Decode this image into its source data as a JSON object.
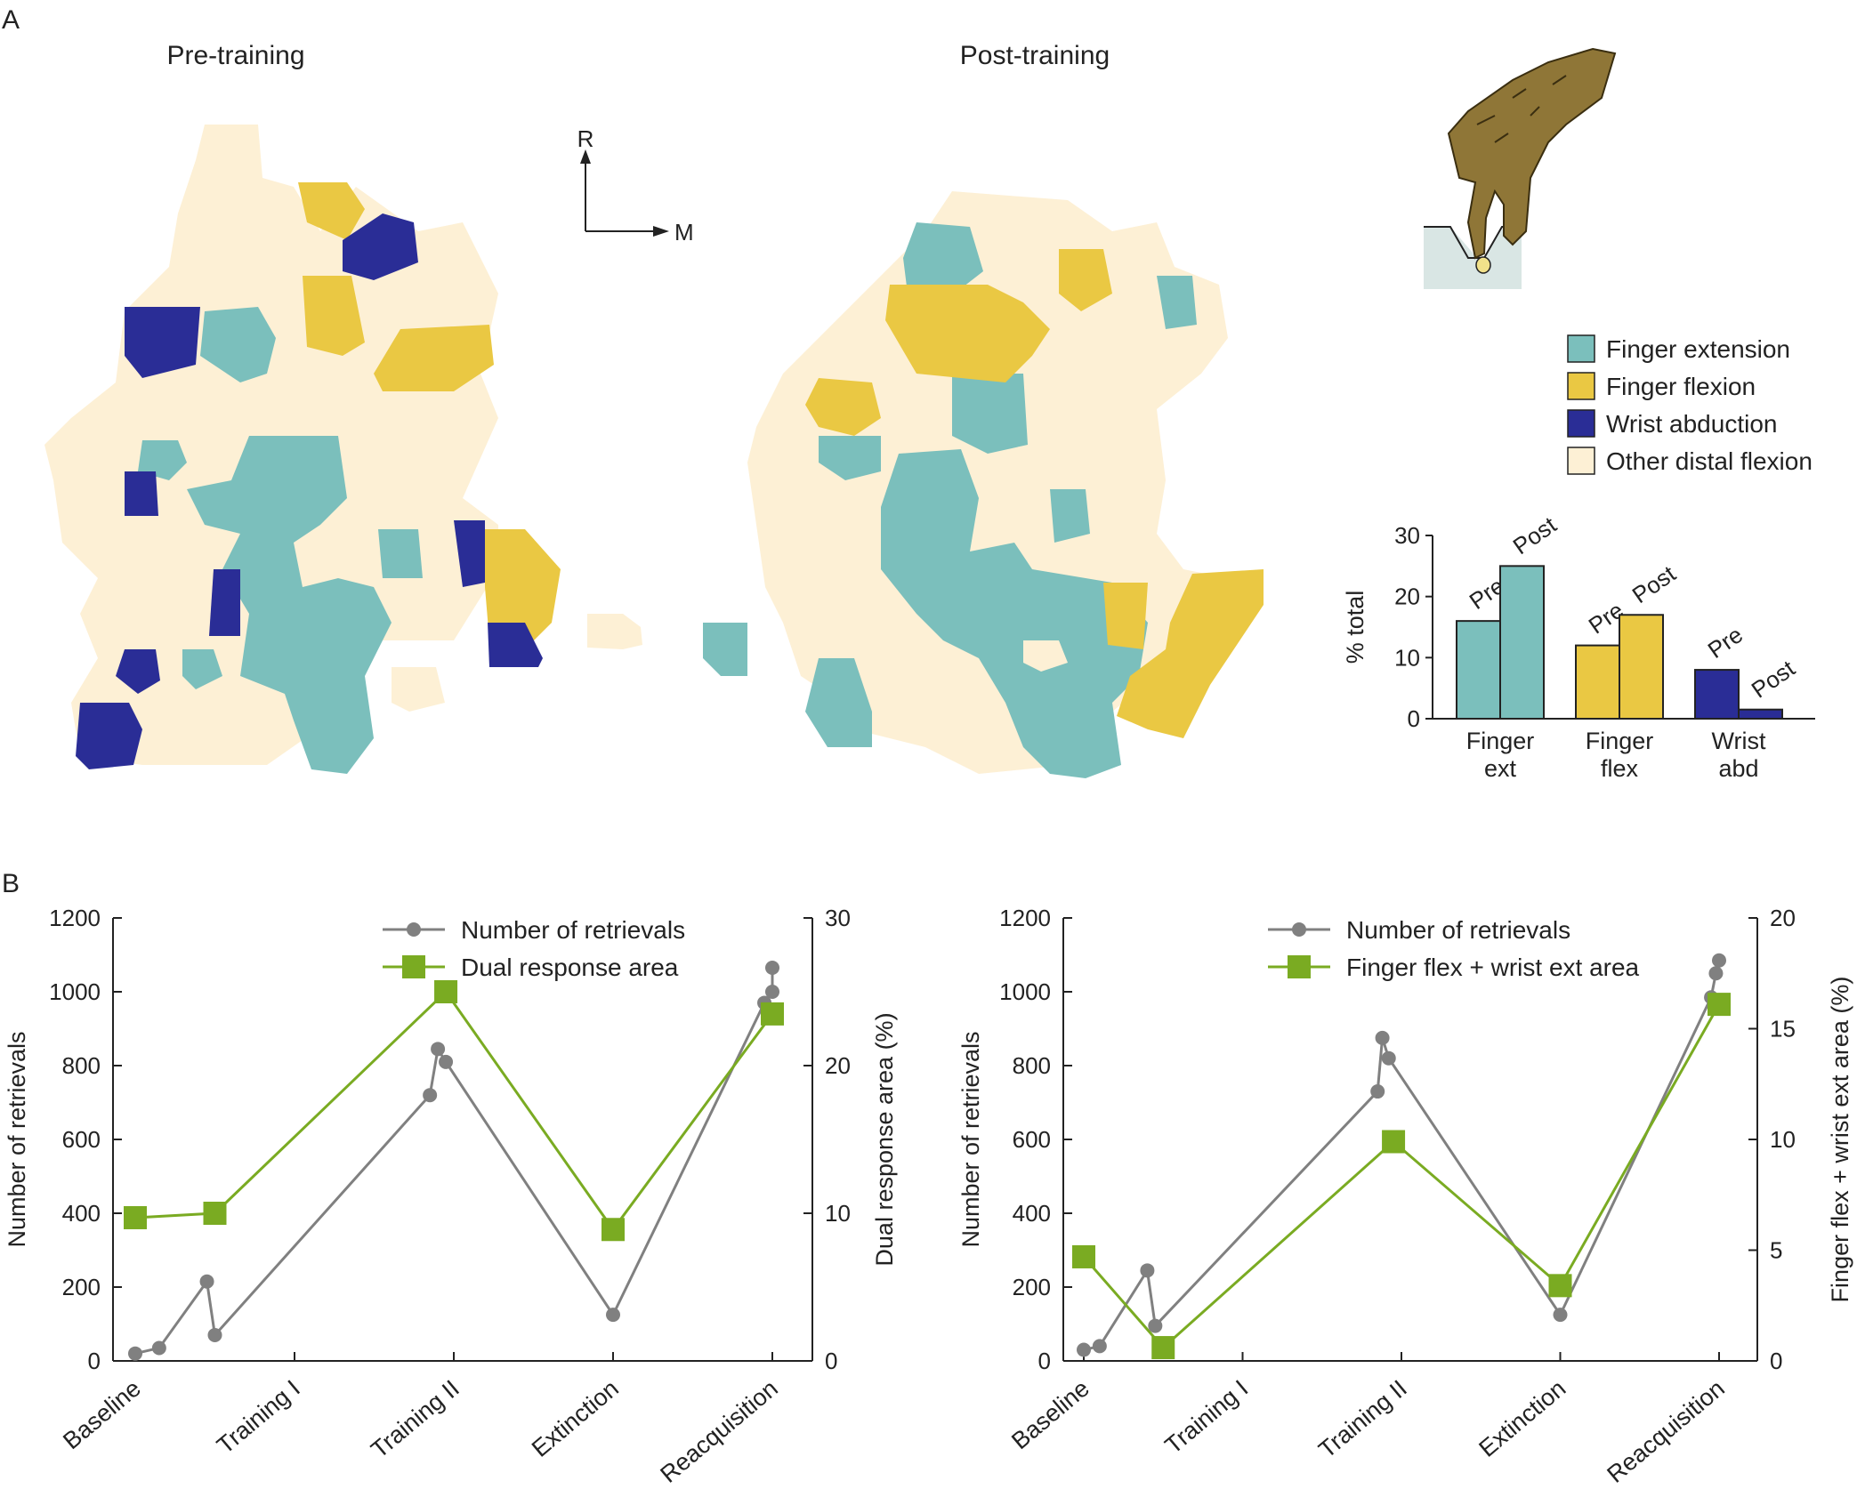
{
  "panel_a": {
    "label": "A",
    "maps": [
      {
        "title": "Pre-training"
      },
      {
        "title": "Post-training"
      }
    ],
    "orientation": {
      "r_label": "R",
      "m_label": "M"
    },
    "legend": [
      {
        "label": "Finger extension",
        "color": "#7bbfbc"
      },
      {
        "label": "Finger flexion",
        "color": "#eac843"
      },
      {
        "label": "Wrist abduction",
        "color": "#2a2d96"
      },
      {
        "label": "Other distal flexion",
        "color": "#fdf0d5"
      }
    ],
    "illustration": "monkey-hand-retrieving-pellet-icon"
  },
  "panel_b": {
    "label": "B"
  },
  "chart_data": [
    {
      "type": "bar",
      "ylabel": "% total",
      "ylim": [
        0,
        30
      ],
      "yticks": [
        0,
        10,
        20,
        30
      ],
      "categories": [
        "Finger\next",
        "Finger\nflex",
        "Wrist\nabd"
      ],
      "categories_lines": [
        [
          "Finger",
          "ext"
        ],
        [
          "Finger",
          "flex"
        ],
        [
          "Wrist",
          "abd"
        ]
      ],
      "series": [
        {
          "name": "Pre",
          "values": [
            16,
            12,
            8
          ]
        },
        {
          "name": "Post",
          "values": [
            25,
            17,
            1.5
          ]
        }
      ],
      "colors": [
        "#7bbfbc",
        "#eac843",
        "#2a2d96"
      ]
    },
    {
      "type": "line",
      "categories": [
        "Baseline",
        "Training I",
        "Training II",
        "Extinction",
        "Reacquisition"
      ],
      "ylabel": "Number of retrievals",
      "ylim": [
        0,
        1200
      ],
      "yticks": [
        0,
        200,
        400,
        600,
        800,
        1000,
        1200
      ],
      "y2label": "Dual response area (%)",
      "y2lim": [
        0,
        30
      ],
      "y2ticks": [
        0,
        10,
        20,
        30
      ],
      "legend": [
        "Number of retrievals",
        "Dual response area"
      ],
      "series": [
        {
          "name": "Number of retrievals",
          "axis": "left",
          "x": [
            0.0,
            0.15,
            0.45,
            0.5,
            1.85,
            1.9,
            1.95,
            3.0,
            3.95,
            4.0,
            4.0
          ],
          "values": [
            20,
            35,
            215,
            70,
            720,
            845,
            810,
            125,
            970,
            1000,
            1065
          ]
        },
        {
          "name": "Dual response area",
          "axis": "right",
          "x": [
            0.0,
            0.5,
            1.95,
            3.0,
            4.0
          ],
          "values": [
            9.7,
            10.0,
            25.0,
            8.9,
            23.5
          ]
        }
      ]
    },
    {
      "type": "line",
      "categories": [
        "Baseline",
        "Training I",
        "Training II",
        "Extinction",
        "Reacquisition"
      ],
      "ylabel": "Number of retrievals",
      "ylim": [
        0,
        1200
      ],
      "yticks": [
        0,
        200,
        400,
        600,
        800,
        1000,
        1200
      ],
      "y2label": "Finger flex + wrist ext area (%)",
      "y2lim": [
        0,
        20
      ],
      "y2ticks": [
        0,
        5,
        10,
        15,
        20
      ],
      "legend": [
        "Number of retrievals",
        "Finger flex + wrist ext area"
      ],
      "series": [
        {
          "name": "Number of retrievals",
          "axis": "left",
          "x": [
            0.0,
            0.1,
            0.4,
            0.45,
            1.85,
            1.88,
            1.92,
            3.0,
            3.95,
            3.98,
            4.0
          ],
          "values": [
            30,
            40,
            245,
            95,
            730,
            875,
            820,
            125,
            985,
            1050,
            1085
          ]
        },
        {
          "name": "Finger flex + wrist ext area",
          "axis": "right",
          "x": [
            0.0,
            0.5,
            1.95,
            3.0,
            4.0
          ],
          "values": [
            4.7,
            0.6,
            9.9,
            3.4,
            16.1
          ]
        }
      ]
    }
  ]
}
